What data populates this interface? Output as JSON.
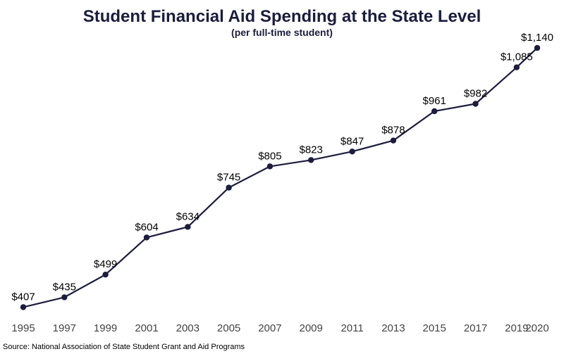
{
  "chart_data": {
    "type": "line",
    "title": "Student Financial Aid Spending at the State Level",
    "subtitle": "(per full-time student)",
    "source": "Source: National Association of State Student Grant and Aid Programs",
    "xlabel": "",
    "ylabel": "",
    "grid": false,
    "legend": "none",
    "x": [
      "1995",
      "1997",
      "1999",
      "2001",
      "2003",
      "2005",
      "2007",
      "2009",
      "2011",
      "2013",
      "2015",
      "2017",
      "2019",
      "2020"
    ],
    "values": [
      407,
      435,
      499,
      604,
      634,
      745,
      805,
      823,
      847,
      878,
      961,
      982,
      1085,
      1140
    ],
    "data_labels": [
      "$407",
      "$435",
      "$499",
      "$604",
      "$634",
      "$745",
      "$805",
      "$823",
      "$847",
      "$878",
      "$961",
      "$982",
      "$1,085",
      "$1,140"
    ],
    "ylim": [
      380,
      1170
    ],
    "colors": {
      "line": "#1b1d3d",
      "title": "#1b1d3d",
      "labels": "#000000",
      "ticks": "#444444"
    }
  }
}
